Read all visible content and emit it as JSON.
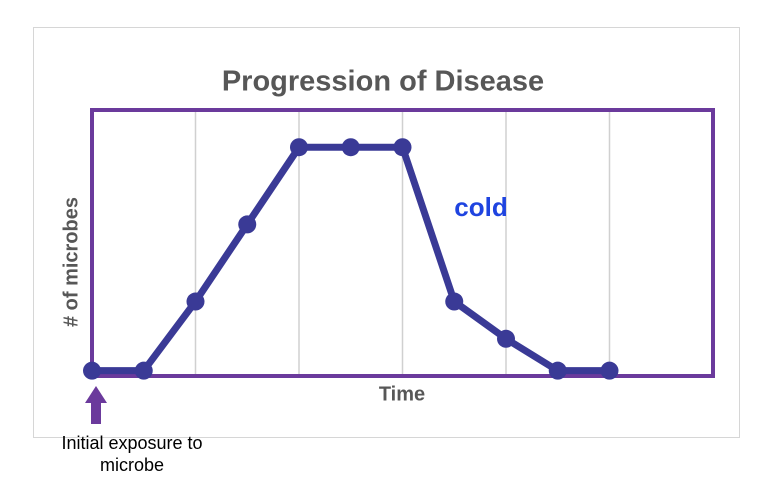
{
  "chart_data": {
    "type": "line",
    "title": "Progression of Disease",
    "x_label": "Time",
    "y_label": "# of microbes",
    "annotation": "cold",
    "exposure_label": [
      "Initial exposure to",
      "microbe"
    ],
    "x": [
      0,
      1,
      2,
      3,
      4,
      5,
      6,
      7,
      8,
      9,
      10
    ],
    "series": [
      {
        "name": "cold",
        "color": "#3a3a96",
        "values": [
          2,
          2,
          28,
          57,
          86,
          86,
          86,
          28,
          14,
          2,
          2
        ]
      }
    ],
    "xlim": [
      0,
      12
    ],
    "xticks": [
      2,
      4,
      6,
      8,
      10
    ],
    "ylim": [
      0,
      100
    ],
    "grid": true
  }
}
